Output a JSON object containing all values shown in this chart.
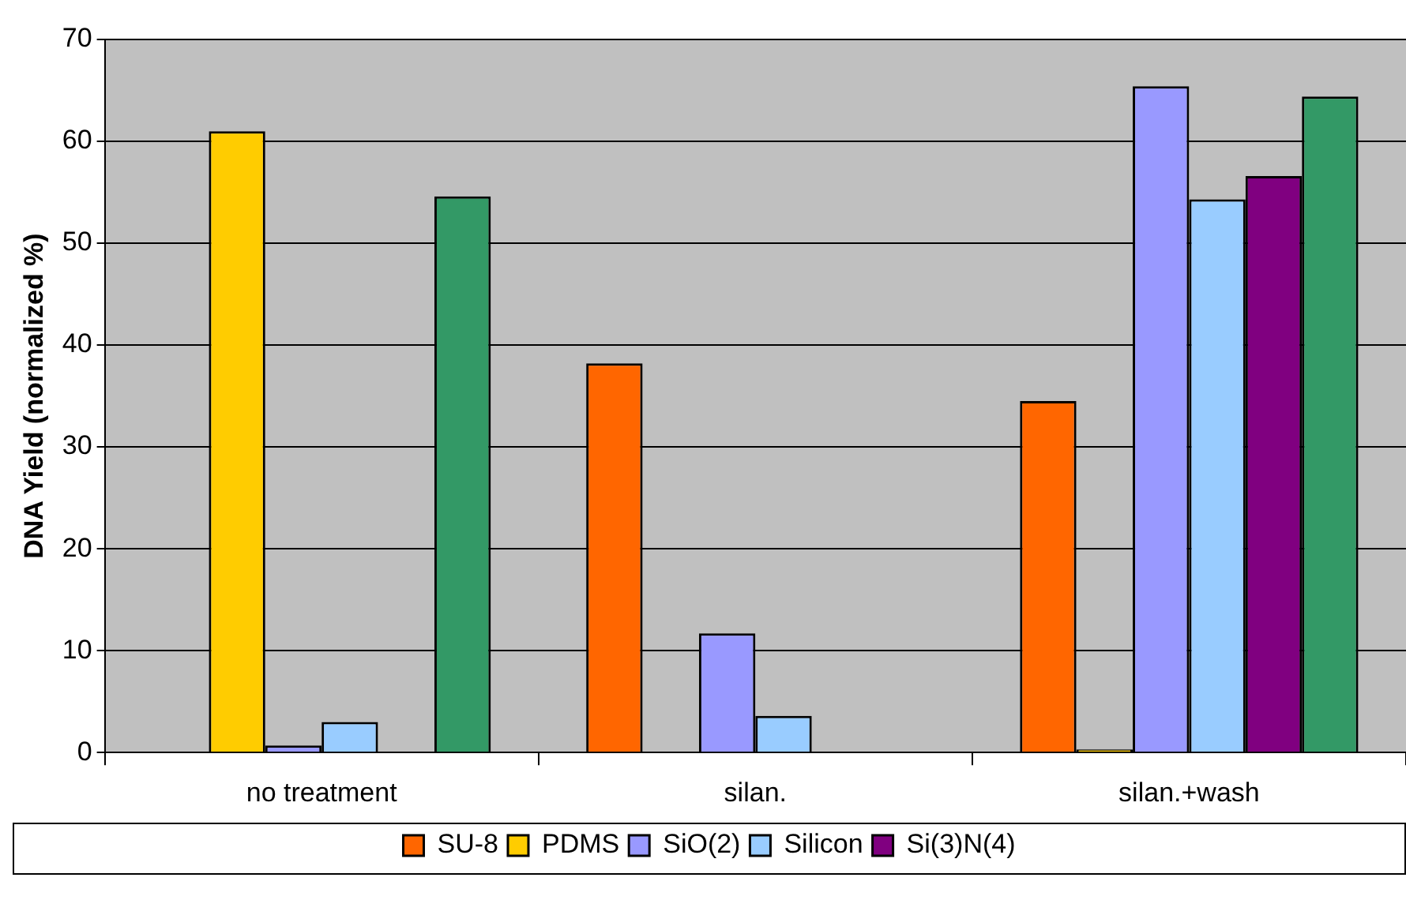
{
  "chart_data": {
    "type": "bar",
    "ylabel": "DNA Yield (normalized %)",
    "categories": [
      "no treatment",
      "silan.",
      "silan.+wash"
    ],
    "series": [
      {
        "name": "SU-8",
        "color": "#ff6600",
        "values": [
          null,
          38.2,
          34.5
        ]
      },
      {
        "name": "PDMS",
        "color": "#ffcc00",
        "values": [
          61.0,
          null,
          0.3
        ]
      },
      {
        "name": "SiO(2)",
        "color": "#9999ff",
        "values": [
          0.7,
          11.7,
          65.4
        ]
      },
      {
        "name": "Silicon",
        "color": "#99ccff",
        "values": [
          3.0,
          3.6,
          54.3
        ]
      },
      {
        "name": "Si(3)N(4)",
        "color": "#800080",
        "values": [
          null,
          null,
          56.6
        ]
      },
      {
        "color": "#339966",
        "values": [
          54.6,
          null,
          64.4
        ]
      }
    ],
    "ylim": [
      0,
      70
    ],
    "yticks": [
      0,
      10,
      20,
      30,
      40,
      50,
      60,
      70
    ],
    "grid": "y",
    "legend": "bottom"
  }
}
